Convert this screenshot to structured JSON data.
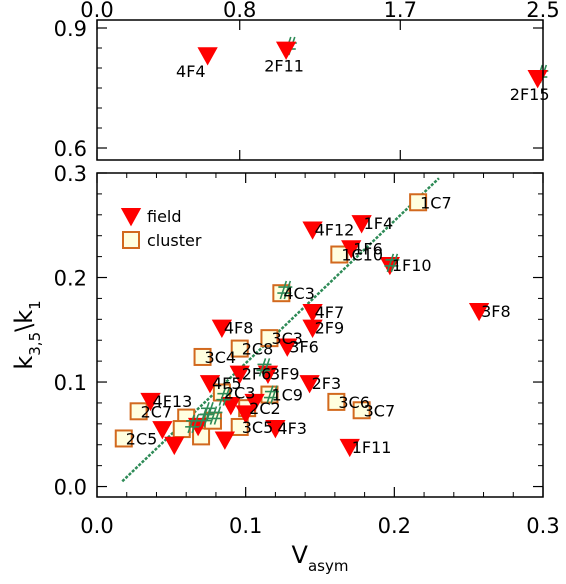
{
  "colors": {
    "field": "#ff0000",
    "cluster_edge": "#d2691e",
    "cluster_fill": "#ffffe0",
    "fit": "#2e8b57"
  },
  "chart_data": [
    {
      "type": "scatter",
      "panel": "top",
      "xlim": [
        0.0,
        2.5
      ],
      "ylim": [
        0.57,
        0.92
      ],
      "x_ticks": [
        "0.0",
        "0.8",
        "1.7",
        "2.5"
      ],
      "y_ticks": [
        "0.6",
        "0.9"
      ],
      "legend": "none",
      "series": [
        {
          "marker": "triangle-down",
          "points": [
            {
              "label": "4F4",
              "x": 0.62,
              "y": 0.832
            },
            {
              "label": "2F11",
              "x": 1.06,
              "y": 0.846
            },
            {
              "label": "2F15",
              "x": 2.47,
              "y": 0.775
            }
          ]
        }
      ],
      "fit_markers": [
        {
          "x": 1.075,
          "y": 0.855
        },
        {
          "x": 2.485,
          "y": 0.785
        }
      ]
    },
    {
      "type": "scatter",
      "panel": "bottom",
      "xlabel": "V",
      "xlabel_sub": "asym",
      "ylabel": "k",
      "ylabel_sub": "3,5",
      "ylabel_mid": "\\k",
      "ylabel_sub2": "1",
      "xlim": [
        0.0,
        0.3
      ],
      "ylim": [
        -0.01,
        0.3
      ],
      "x_ticks": [
        "0.0",
        "0.1",
        "0.2",
        "0.3"
      ],
      "y_ticks": [
        "0.0",
        "0.1",
        "0.2",
        "0.3"
      ],
      "legend": "top-left",
      "fit_line": {
        "x": [
          0.017,
          0.23
        ],
        "y": [
          0.005,
          0.295
        ]
      },
      "series": [
        {
          "name": "field",
          "marker": "triangle-down",
          "points": [
            {
              "label": "1F4",
              "x": 0.178,
              "y": 0.252
            },
            {
              "label": "4F12",
              "x": 0.145,
              "y": 0.246
            },
            {
              "label": "1F6",
              "x": 0.171,
              "y": 0.228
            },
            {
              "label": "1F10",
              "x": 0.197,
              "y": 0.212
            },
            {
              "label": "3F8",
              "x": 0.257,
              "y": 0.168
            },
            {
              "label": "4F7",
              "x": 0.145,
              "y": 0.167
            },
            {
              "label": "2F9",
              "x": 0.145,
              "y": 0.152
            },
            {
              "label": "4F8",
              "x": 0.084,
              "y": 0.152
            },
            {
              "label": "3F6",
              "x": 0.128,
              "y": 0.134
            },
            {
              "label": "2F3",
              "x": 0.143,
              "y": 0.099
            },
            {
              "label": "4F13",
              "x": 0.036,
              "y": 0.082
            },
            {
              "label": "1F11",
              "x": 0.17,
              "y": 0.038
            },
            {
              "label": "4F3",
              "x": 0.12,
              "y": 0.056
            },
            {
              "label": "3F9",
              "x": 0.115,
              "y": 0.108
            },
            {
              "label": "2F6",
              "x": 0.096,
              "y": 0.108
            },
            {
              "label": "4F5",
              "x": 0.076,
              "y": 0.099
            },
            {
              "label": "",
              "x": 0.052,
              "y": 0.04
            },
            {
              "label": "",
              "x": 0.044,
              "y": 0.055
            },
            {
              "label": "",
              "x": 0.086,
              "y": 0.045
            },
            {
              "label": "",
              "x": 0.1,
              "y": 0.07
            },
            {
              "label": "",
              "x": 0.09,
              "y": 0.078
            },
            {
              "label": "",
              "x": 0.106,
              "y": 0.081
            },
            {
              "label": "",
              "x": 0.068,
              "y": 0.058
            }
          ]
        },
        {
          "name": "cluster",
          "marker": "square-open",
          "points": [
            {
              "label": "1C7",
              "x": 0.216,
              "y": 0.272
            },
            {
              "label": "1C10",
              "x": 0.163,
              "y": 0.222
            },
            {
              "label": "4C3",
              "x": 0.124,
              "y": 0.185
            },
            {
              "label": "3C3",
              "x": 0.116,
              "y": 0.142
            },
            {
              "label": "2C8",
              "x": 0.096,
              "y": 0.132
            },
            {
              "label": "3C4",
              "x": 0.071,
              "y": 0.124
            },
            {
              "label": "2C3",
              "x": 0.084,
              "y": 0.09
            },
            {
              "label": "1C9",
              "x": 0.116,
              "y": 0.088
            },
            {
              "label": "3C6",
              "x": 0.161,
              "y": 0.081
            },
            {
              "label": "3C7",
              "x": 0.178,
              "y": 0.073
            },
            {
              "label": "2C7",
              "x": 0.028,
              "y": 0.072
            },
            {
              "label": "2C5",
              "x": 0.018,
              "y": 0.046
            },
            {
              "label": "2C2",
              "x": 0.101,
              "y": 0.075
            },
            {
              "label": "3C5",
              "x": 0.096,
              "y": 0.057
            },
            {
              "label": "",
              "x": 0.06,
              "y": 0.066
            },
            {
              "label": "",
              "x": 0.07,
              "y": 0.048
            },
            {
              "label": "",
              "x": 0.078,
              "y": 0.063
            },
            {
              "label": "",
              "x": 0.057,
              "y": 0.055
            }
          ]
        }
      ],
      "fit_markers": [
        {
          "x": 0.126,
          "y": 0.188
        },
        {
          "x": 0.198,
          "y": 0.214
        },
        {
          "x": 0.074,
          "y": 0.072
        },
        {
          "x": 0.072,
          "y": 0.066
        },
        {
          "x": 0.085,
          "y": 0.086
        },
        {
          "x": 0.112,
          "y": 0.114
        },
        {
          "x": 0.079,
          "y": 0.068
        },
        {
          "x": 0.117,
          "y": 0.088
        },
        {
          "x": 0.064,
          "y": 0.06
        }
      ]
    }
  ]
}
